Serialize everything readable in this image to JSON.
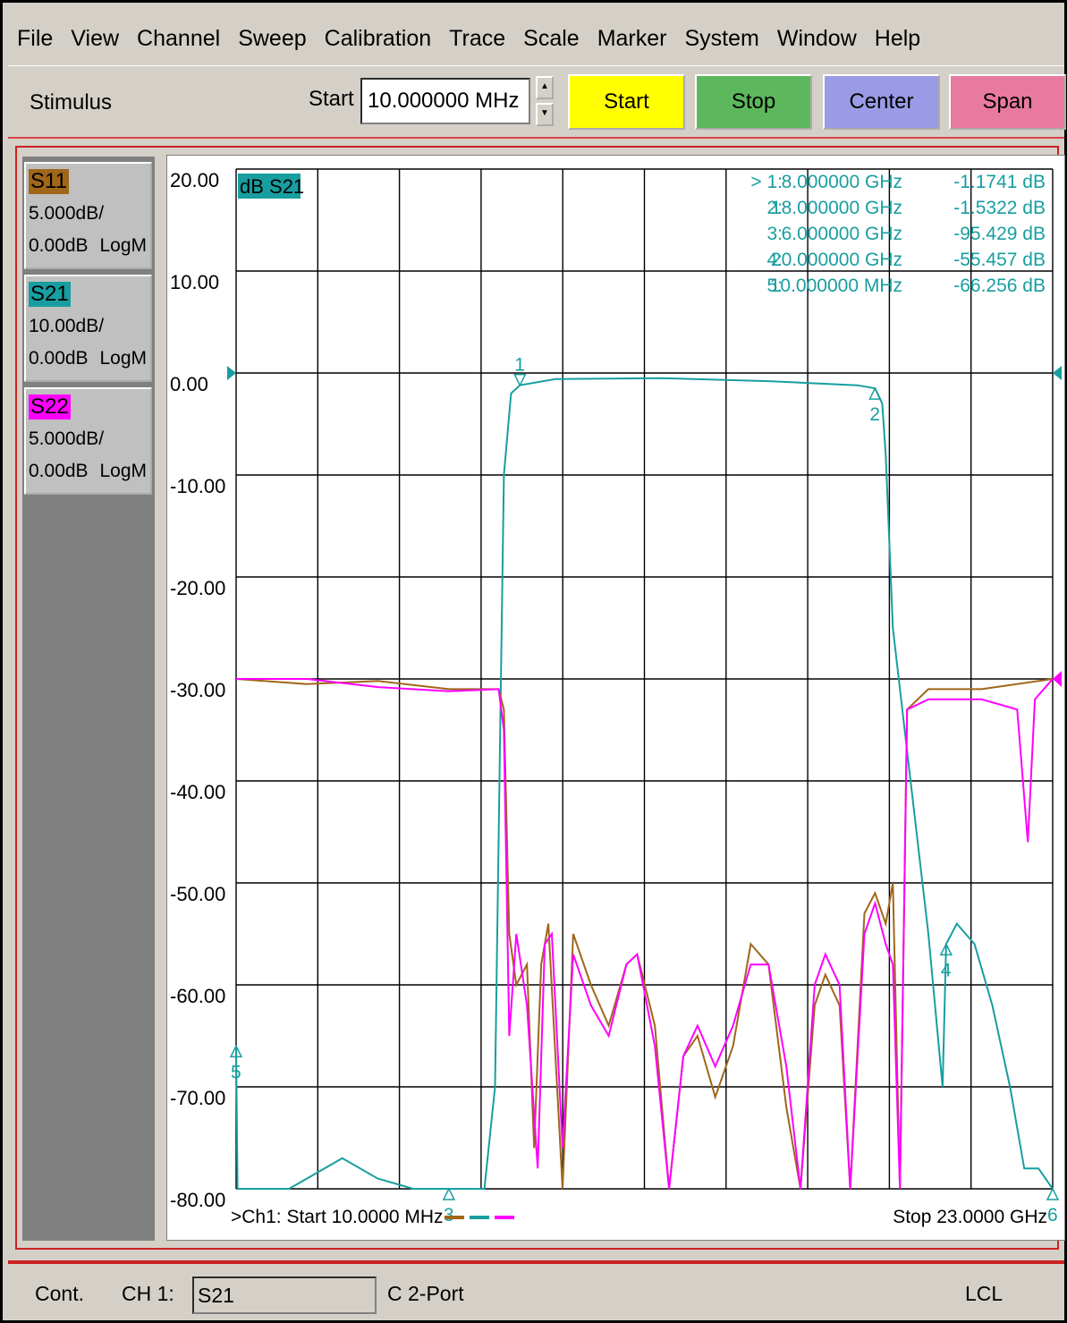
{
  "menu": [
    "File",
    "View",
    "Channel",
    "Sweep",
    "Calibration",
    "Trace",
    "Scale",
    "Marker",
    "System",
    "Window",
    "Help"
  ],
  "toolbar": {
    "stimulus_label": "Stimulus",
    "start_label": "Start",
    "start_value": "10.000000 MHz",
    "buttons": [
      {
        "label": "Start",
        "color": "#ffff00"
      },
      {
        "label": "Stop",
        "color": "#5db85d"
      },
      {
        "label": "Center",
        "color": "#9a9ae6"
      },
      {
        "label": "Span",
        "color": "#e87aa0"
      }
    ]
  },
  "traces": [
    {
      "name": "S11",
      "scale": "5.000dB/",
      "ref": "0.00dB",
      "format": "LogM",
      "color": "#a0661a"
    },
    {
      "name": "S21",
      "scale": "10.00dB/",
      "ref": "0.00dB",
      "format": "LogM",
      "color": "#189ea0"
    },
    {
      "name": "S22",
      "scale": "5.000dB/",
      "ref": "0.00dB",
      "format": "LogM",
      "color": "#ff00ff"
    }
  ],
  "graph": {
    "active_trace_label": "dB S21",
    "footer_start": ">Ch1: Start  10.0000 MHz",
    "footer_stop": "Stop  23.0000 GHz",
    "markers": [
      {
        "id": "> 1:",
        "freq": "8.000000 GHz",
        "value": "-1.1741 dB"
      },
      {
        "id": "2:",
        "freq": "18.000000 GHz",
        "value": "-1.5322 dB"
      },
      {
        "id": "3:",
        "freq": "6.000000 GHz",
        "value": "-95.429 dB"
      },
      {
        "id": "4:",
        "freq": "20.000000 GHz",
        "value": "-55.457 dB"
      },
      {
        "id": "5:",
        "freq": "10.000000 MHz",
        "value": "-66.256 dB"
      }
    ],
    "marker_labels": [
      "1",
      "2",
      "3",
      "4",
      "5",
      "6"
    ]
  },
  "chart_data": {
    "type": "line",
    "x_unit": "GHz",
    "xlim": [
      0.01,
      23.0
    ],
    "ylim": [
      -80,
      20
    ],
    "y_ticks": [
      "20.00",
      "10.00",
      "0.00",
      "-10.00",
      "-20.00",
      "-30.00",
      "-40.00",
      "-50.00",
      "-60.00",
      "-70.00",
      "-80.00"
    ],
    "series": [
      {
        "name": "S21",
        "color": "#189ea0",
        "points": [
          [
            0.01,
            -66
          ],
          [
            0.05,
            -80
          ],
          [
            1.5,
            -80
          ],
          [
            3,
            -77
          ],
          [
            4,
            -79
          ],
          [
            5,
            -80
          ],
          [
            7,
            -80
          ],
          [
            7.3,
            -70
          ],
          [
            7.55,
            -10
          ],
          [
            7.75,
            -2
          ],
          [
            8,
            -1.2
          ],
          [
            9,
            -0.6
          ],
          [
            12,
            -0.5
          ],
          [
            15,
            -0.8
          ],
          [
            17.5,
            -1.2
          ],
          [
            18,
            -1.5
          ],
          [
            18.2,
            -3
          ],
          [
            18.3,
            -8
          ],
          [
            18.5,
            -25
          ],
          [
            19,
            -40
          ],
          [
            19.5,
            -55
          ],
          [
            19.9,
            -70
          ],
          [
            20,
            -56
          ],
          [
            20.3,
            -54
          ],
          [
            20.8,
            -56
          ],
          [
            21.3,
            -62
          ],
          [
            21.8,
            -70
          ],
          [
            22.2,
            -78
          ],
          [
            22.6,
            -78
          ],
          [
            23,
            -80
          ]
        ]
      },
      {
        "name": "S11",
        "color": "#a0661a",
        "points": [
          [
            0.01,
            -30
          ],
          [
            2,
            -30.5
          ],
          [
            4,
            -30.2
          ],
          [
            6,
            -31
          ],
          [
            7.4,
            -31
          ],
          [
            7.55,
            -33
          ],
          [
            7.7,
            -55
          ],
          [
            7.9,
            -60
          ],
          [
            8.2,
            -58
          ],
          [
            8.4,
            -76
          ],
          [
            8.6,
            -58
          ],
          [
            8.8,
            -54
          ],
          [
            9.2,
            -80
          ],
          [
            9.5,
            -55
          ],
          [
            10,
            -60
          ],
          [
            10.5,
            -64
          ],
          [
            11,
            -58
          ],
          [
            11.3,
            -57
          ],
          [
            11.8,
            -64
          ],
          [
            12.2,
            -80
          ],
          [
            12.6,
            -67
          ],
          [
            13,
            -65
          ],
          [
            13.5,
            -71
          ],
          [
            14,
            -66
          ],
          [
            14.5,
            -56
          ],
          [
            15,
            -58
          ],
          [
            15.5,
            -72
          ],
          [
            15.9,
            -80
          ],
          [
            16.3,
            -62
          ],
          [
            16.6,
            -59
          ],
          [
            17,
            -62
          ],
          [
            17.3,
            -80
          ],
          [
            17.7,
            -53
          ],
          [
            18,
            -51
          ],
          [
            18.3,
            -54
          ],
          [
            18.5,
            -50
          ],
          [
            18.7,
            -80
          ],
          [
            18.9,
            -33
          ],
          [
            19.5,
            -31
          ],
          [
            21,
            -31
          ],
          [
            23,
            -30
          ]
        ]
      },
      {
        "name": "S22",
        "color": "#ff00ff",
        "points": [
          [
            0.01,
            -30
          ],
          [
            2,
            -30
          ],
          [
            4,
            -30.8
          ],
          [
            6,
            -31.2
          ],
          [
            7.4,
            -31
          ],
          [
            7.55,
            -35
          ],
          [
            7.7,
            -65
          ],
          [
            7.9,
            -55
          ],
          [
            8.2,
            -62
          ],
          [
            8.5,
            -78
          ],
          [
            8.7,
            -56
          ],
          [
            8.9,
            -55
          ],
          [
            9.2,
            -76
          ],
          [
            9.5,
            -57
          ],
          [
            10,
            -62
          ],
          [
            10.5,
            -65
          ],
          [
            11,
            -58
          ],
          [
            11.3,
            -57
          ],
          [
            11.8,
            -66
          ],
          [
            12.2,
            -80
          ],
          [
            12.6,
            -67
          ],
          [
            13,
            -64
          ],
          [
            13.5,
            -68
          ],
          [
            14,
            -64
          ],
          [
            14.5,
            -58
          ],
          [
            15,
            -58
          ],
          [
            15.5,
            -68
          ],
          [
            15.9,
            -80
          ],
          [
            16.3,
            -60
          ],
          [
            16.6,
            -57
          ],
          [
            17,
            -60
          ],
          [
            17.3,
            -80
          ],
          [
            17.7,
            -55
          ],
          [
            18,
            -52
          ],
          [
            18.3,
            -56
          ],
          [
            18.5,
            -58
          ],
          [
            18.7,
            -80
          ],
          [
            18.9,
            -33
          ],
          [
            19.5,
            -32
          ],
          [
            21,
            -32
          ],
          [
            22,
            -33
          ],
          [
            22.3,
            -46
          ],
          [
            22.5,
            -32
          ],
          [
            23,
            -30
          ]
        ]
      }
    ]
  },
  "status": {
    "mode": "Cont.",
    "channel": "CH 1:",
    "param": "S21",
    "port": "C  2-Port",
    "lcl": "LCL"
  }
}
